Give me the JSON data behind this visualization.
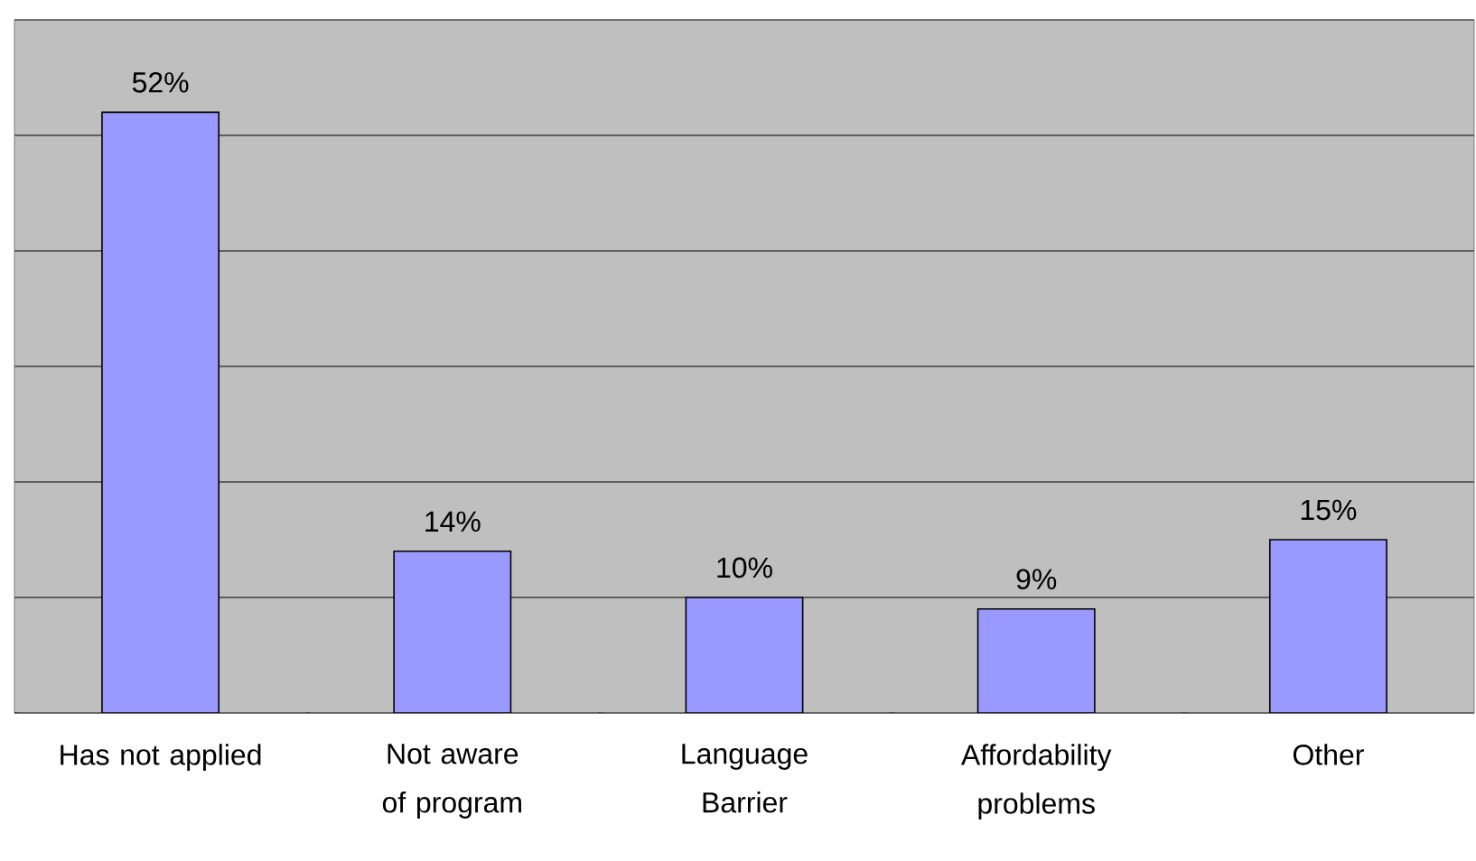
{
  "chart_data": {
    "type": "bar",
    "categories": [
      "Has not applied",
      "Not aware of program",
      "Language Barrier",
      "Affordability problems",
      "Other"
    ],
    "values": [
      52,
      14,
      10,
      9,
      15
    ],
    "value_labels": [
      "52%",
      "14%",
      "10%",
      "9%",
      "15%"
    ],
    "color": "#9999ff",
    "ylim": [
      0,
      60
    ],
    "yticks": [
      {
        "value": 0,
        "label": null
      },
      {
        "value": 10,
        "label": null
      },
      {
        "value": 20,
        "label": null
      },
      {
        "value": 30,
        "label": null
      },
      {
        "value": 40,
        "label": null
      },
      {
        "value": 50,
        "label": null
      },
      {
        "value": 60,
        "label": null
      }
    ],
    "tick_labels": "x",
    "grid": "y"
  }
}
